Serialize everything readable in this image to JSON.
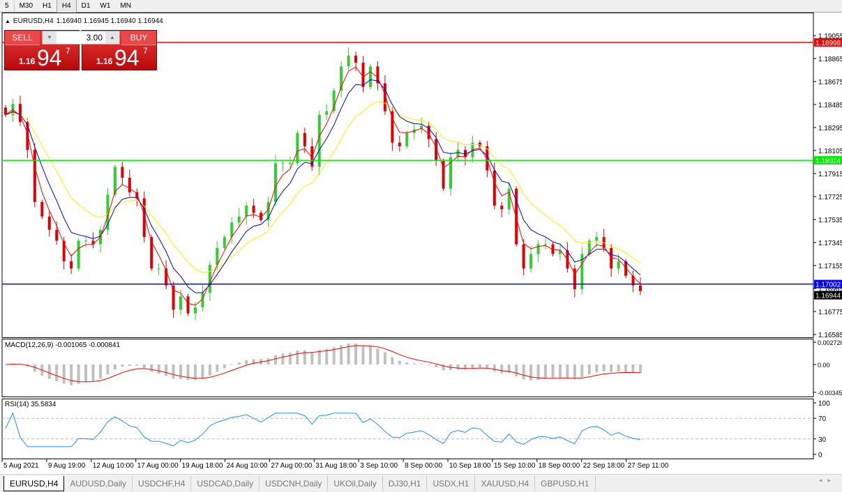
{
  "toolbar": {
    "timeframes": [
      {
        "label": "5"
      },
      {
        "label": "M30"
      },
      {
        "label": "H1"
      },
      {
        "label": "H4",
        "active": true
      },
      {
        "label": "D1"
      },
      {
        "label": "W1"
      },
      {
        "label": "MN"
      }
    ]
  },
  "symbol": {
    "header": "EURUSD,H4",
    "ohlc": "1.16940 1.16945 1.16940 1.16944"
  },
  "trade_panel": {
    "sell_label": "SELL",
    "buy_label": "BUY",
    "lot": "3.00",
    "sell_price": {
      "big": "1.16",
      "pips": "94",
      "frac": "7"
    },
    "buy_price": {
      "big": "1.16",
      "pips": "94",
      "frac": "7"
    }
  },
  "colors": {
    "bull": "#2fcf2f",
    "bear": "#e00000",
    "ma_fast": "#ff0000",
    "ma_mid": "#0000dd",
    "ma_slow": "#ffee00",
    "macd_hist": "#c0c0c0",
    "macd_signal": "#ff0000",
    "rsi": "#1e90ff"
  },
  "chart_data": {
    "type": "candlestick",
    "symbol": "EURUSD",
    "timeframe": "H4",
    "closes": [
      1.184,
      1.1849,
      1.1834,
      1.1811,
      1.1768,
      1.1756,
      1.1745,
      1.1736,
      1.1719,
      1.1713,
      1.1736,
      1.1736,
      1.1733,
      1.1745,
      1.1774,
      1.1797,
      1.1788,
      1.1776,
      1.1771,
      1.1739,
      1.1713,
      1.1713,
      1.1699,
      1.1679,
      1.169,
      1.1676,
      1.1681,
      1.1693,
      1.1716,
      1.173,
      1.1739,
      1.1751,
      1.1756,
      1.1765,
      1.1759,
      1.1753,
      1.1768,
      1.18,
      1.18,
      1.18,
      1.1825,
      1.1814,
      1.1797,
      1.184,
      1.1843,
      1.186,
      1.188,
      1.1889,
      1.1883,
      1.1863,
      1.188,
      1.1866,
      1.1843,
      1.1817,
      1.1814,
      1.1825,
      1.1828,
      1.1831,
      1.182,
      1.1802,
      1.1779,
      1.1805,
      1.1811,
      1.1805,
      1.1817,
      1.1814,
      1.1794,
      1.1765,
      1.1762,
      1.1779,
      1.1733,
      1.1713,
      1.1725,
      1.1733,
      1.1733,
      1.1725,
      1.1728,
      1.1713,
      1.1696,
      1.1725,
      1.1736,
      1.1739,
      1.173,
      1.1713,
      1.1719,
      1.1707,
      1.1699,
      1.16944
    ],
    "y_range": [
      1.16585,
      1.19055
    ],
    "price_ticks": [
      "1.19055",
      "1.18865",
      "1.18675",
      "1.18485",
      "1.18295",
      "1.18105",
      "1.17915",
      "1.17725",
      "1.17535",
      "1.17345",
      "1.17155",
      "1.16965",
      "1.16775",
      "1.16585"
    ],
    "hlines": [
      {
        "price": "1.18998",
        "color": "#ff0000"
      },
      {
        "price": "1.18024",
        "color": "#00ee00"
      },
      {
        "price": "1.17002",
        "color": "#0000ff"
      }
    ],
    "current_price": "1.16944",
    "time_labels": [
      "5 Aug 2021",
      "9 Aug 19:00",
      "12 Aug 10:00",
      "17 Aug 00:00",
      "19 Aug 18:00",
      "24 Aug 10:00",
      "27 Aug 00:00",
      "31 Aug 18:00",
      "3 Sep 10:00",
      "8 Sep 00:00",
      "10 Sep 18:00",
      "15 Sep 10:00",
      "18 Sep 00:00",
      "22 Sep 18:00",
      "27 Sep 11:00"
    ],
    "macd": {
      "label": "MACD(12,26,9) -0.001065 -0.000841",
      "ticks": [
        "0.002726",
        "0.00",
        "-0.003451"
      ]
    },
    "rsi": {
      "label": "RSI(14) 35.5834",
      "ticks": [
        "100",
        "70",
        "30",
        "0"
      ],
      "levels": [
        70,
        30
      ]
    }
  },
  "tabs": [
    {
      "label": "EURUSD,H4",
      "active": true
    },
    {
      "label": "AUDUSD,Daily"
    },
    {
      "label": "USDCHF,H4"
    },
    {
      "label": "USDCAD,Daily"
    },
    {
      "label": "USDCNH,Daily"
    },
    {
      "label": "UKOil,Daily"
    },
    {
      "label": "DJ30,H1"
    },
    {
      "label": "USDX,H1"
    },
    {
      "label": "XAUUSD,H4"
    },
    {
      "label": "GBPUSD,H1"
    }
  ]
}
